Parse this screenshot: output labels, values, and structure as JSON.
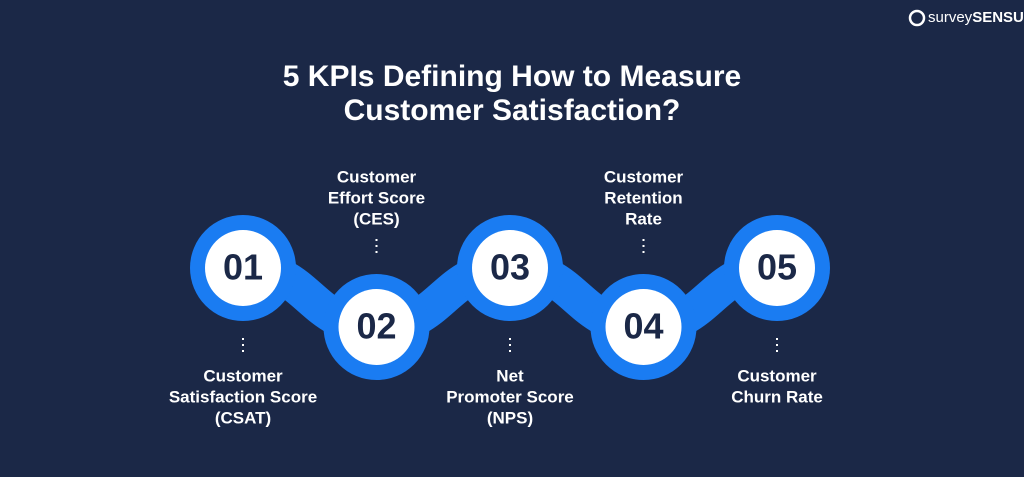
{
  "logo": {
    "prefix": "survey",
    "suffix": "SENSUM"
  },
  "title": [
    "5 KPIs Defining How to Measure",
    "Customer Satisfaction?"
  ],
  "steps": [
    {
      "number": "01",
      "label": [
        "Customer",
        "Satisfaction Score",
        "(CSAT)"
      ]
    },
    {
      "number": "02",
      "label": [
        "Customer",
        "Effort Score",
        "(CES)"
      ]
    },
    {
      "number": "03",
      "label": [
        "Net",
        "Promoter Score",
        "(NPS)"
      ]
    },
    {
      "number": "04",
      "label": [
        "Customer",
        "Retention",
        "Rate"
      ]
    },
    {
      "number": "05",
      "label": [
        "Customer",
        "Churn Rate"
      ]
    }
  ]
}
